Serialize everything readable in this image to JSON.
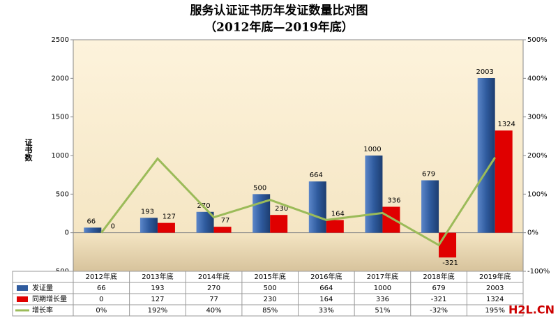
{
  "chart_data": {
    "type": "bar",
    "title": "服务认证证书历年发证数量比对图",
    "subtitle": "（2012年底—2019年底）",
    "y_label": "证书数",
    "watermark": "H2L.CN",
    "categories": [
      "2012年底",
      "2013年底",
      "2014年底",
      "2015年底",
      "2016年底",
      "2017年底",
      "2018年底",
      "2019年底"
    ],
    "series": [
      {
        "name": "发证量",
        "type": "bar",
        "color": "#2f5b9e",
        "values": [
          66,
          193,
          270,
          500,
          664,
          1000,
          679,
          2003
        ]
      },
      {
        "name": "同期增长量",
        "type": "bar",
        "color": "#e00000",
        "values": [
          0,
          127,
          77,
          230,
          164,
          336,
          -321,
          1324
        ]
      },
      {
        "name": "增长率",
        "type": "line",
        "axis": "y2",
        "color": "#9bbb59",
        "values": [
          0,
          192,
          40,
          85,
          33,
          51,
          -32,
          195
        ],
        "value_labels": [
          "0%",
          "192%",
          "40%",
          "85%",
          "33%",
          "51%",
          "-32%",
          "195%"
        ]
      }
    ],
    "ylim": [
      -500,
      2500
    ],
    "yticks": [
      -500,
      0,
      500,
      1000,
      1500,
      2000,
      2500
    ],
    "y2lim": [
      -100,
      500
    ],
    "y2ticks": [
      {
        "value": -100,
        "label": "-100%"
      },
      {
        "value": 0,
        "label": "0%"
      },
      {
        "value": 100,
        "label": "100%"
      },
      {
        "value": 200,
        "label": "200%"
      },
      {
        "value": 300,
        "label": "300%"
      },
      {
        "value": 400,
        "label": "400%"
      },
      {
        "value": 500,
        "label": "500%"
      }
    ]
  }
}
